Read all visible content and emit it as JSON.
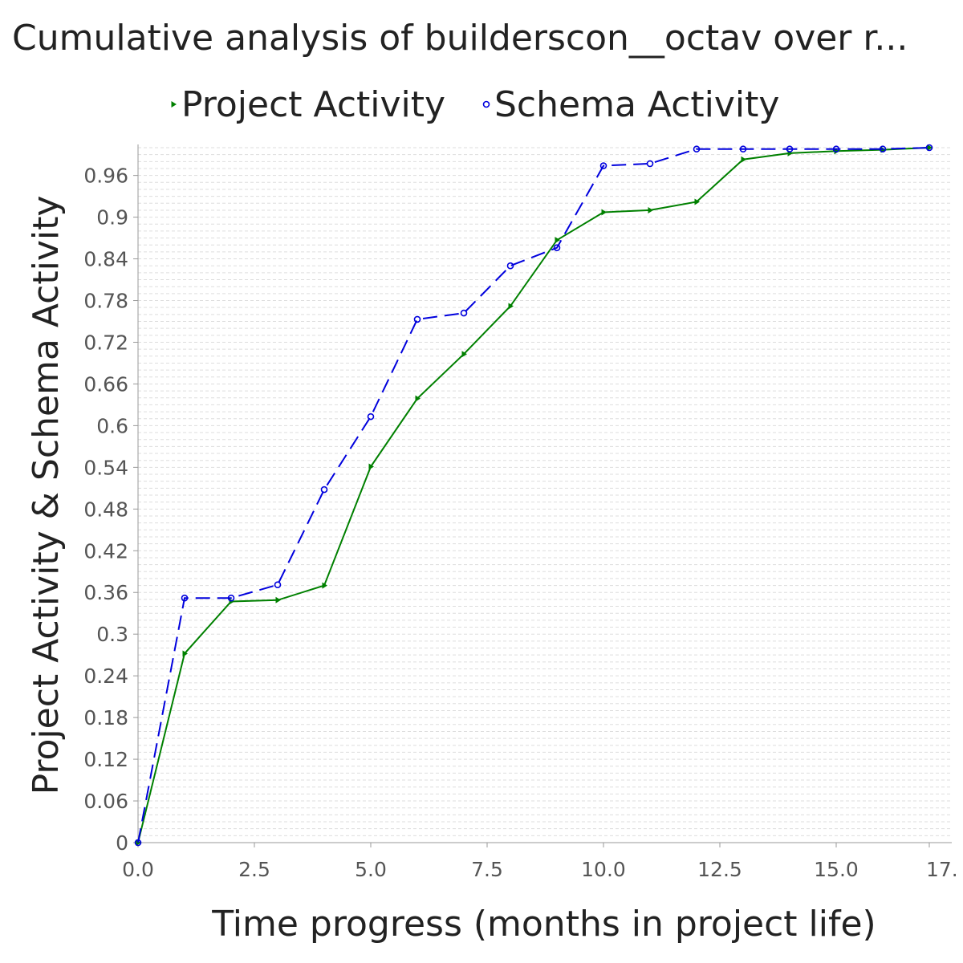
{
  "chart_data": {
    "type": "line",
    "title": "Cumulative analysis of builderscon__octav over r...",
    "xlabel": "Time progress (months in project life)",
    "ylabel": "Project Activity & Schema Activity",
    "xlim": [
      0,
      17
    ],
    "ylim": [
      0,
      1.0
    ],
    "x_ticks": [
      "0.0",
      "2.5",
      "5.0",
      "7.5",
      "10.0",
      "12.5",
      "15.0",
      "17."
    ],
    "y_ticks": [
      "0",
      "0.06",
      "0.12",
      "0.18",
      "0.24",
      "0.3",
      "0.36",
      "0.42",
      "0.48",
      "0.54",
      "0.6",
      "0.66",
      "0.72",
      "0.78",
      "0.84",
      "0.9",
      "0.96"
    ],
    "grid": true,
    "legend_position": "top",
    "series": [
      {
        "name": "Project Activity",
        "color": "#008000",
        "marker": "triangle-right",
        "dash": "solid",
        "x": [
          0,
          1,
          2,
          3,
          4,
          5,
          6,
          7,
          8,
          9,
          10,
          11,
          12,
          13,
          14,
          15,
          16,
          17
        ],
        "values": [
          0.0,
          0.272,
          0.347,
          0.349,
          0.37,
          0.541,
          0.639,
          0.703,
          0.772,
          0.867,
          0.907,
          0.91,
          0.922,
          0.983,
          0.992,
          0.995,
          0.997,
          1.0
        ]
      },
      {
        "name": "Schema Activity",
        "color": "#0000dd",
        "marker": "circle",
        "dash": "dashed",
        "x": [
          0,
          1,
          2,
          3,
          4,
          5,
          6,
          7,
          8,
          9,
          10,
          11,
          12,
          13,
          14,
          15,
          16,
          17
        ],
        "values": [
          0.0,
          0.352,
          0.352,
          0.371,
          0.508,
          0.613,
          0.753,
          0.762,
          0.83,
          0.856,
          0.974,
          0.977,
          0.998,
          0.998,
          0.998,
          0.998,
          0.998,
          1.0
        ]
      }
    ]
  }
}
